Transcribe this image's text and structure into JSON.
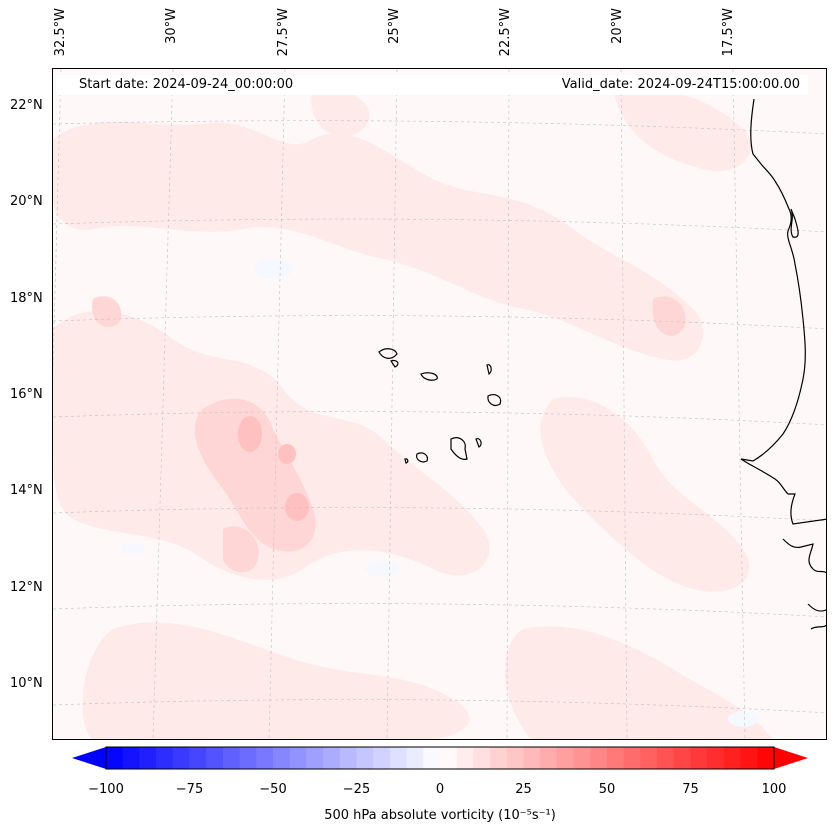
{
  "map": {
    "type": "contour-map",
    "extent": {
      "lon": [
        -33.0,
        -15.5
      ],
      "lat": [
        8.8,
        22.8
      ]
    },
    "lon_labels": [
      "32.5°W",
      "30°W",
      "27.5°W",
      "25°W",
      "22.5°W",
      "20°W",
      "17.5°W"
    ],
    "lat_labels": [
      "22°N",
      "20°N",
      "18°N",
      "16°N",
      "14°N",
      "12°N",
      "10°N"
    ],
    "start_date": "Start date: 2024-09-24_00:00:00",
    "valid_date": "Valid_date: 2024-09-24T15:00:00.00",
    "field_colors": {
      "background": "#fff8f8",
      "light": "#ffeaea",
      "medium": "#ffd6d6",
      "strong": "#ffc0c0",
      "negative": "#f5f8ff"
    },
    "coastline_color": "#000000"
  },
  "colorbar": {
    "ticks": [
      "−100",
      "−75",
      "−50",
      "−25",
      "0",
      "25",
      "50",
      "75",
      "100"
    ],
    "tick_values": [
      -100,
      -75,
      -50,
      -25,
      0,
      25,
      50,
      75,
      100
    ],
    "range": [
      -100,
      100
    ],
    "colormap": "bwr",
    "extend": "both",
    "label": "500 hPa absolute vorticity (10⁻⁵s⁻¹)"
  }
}
